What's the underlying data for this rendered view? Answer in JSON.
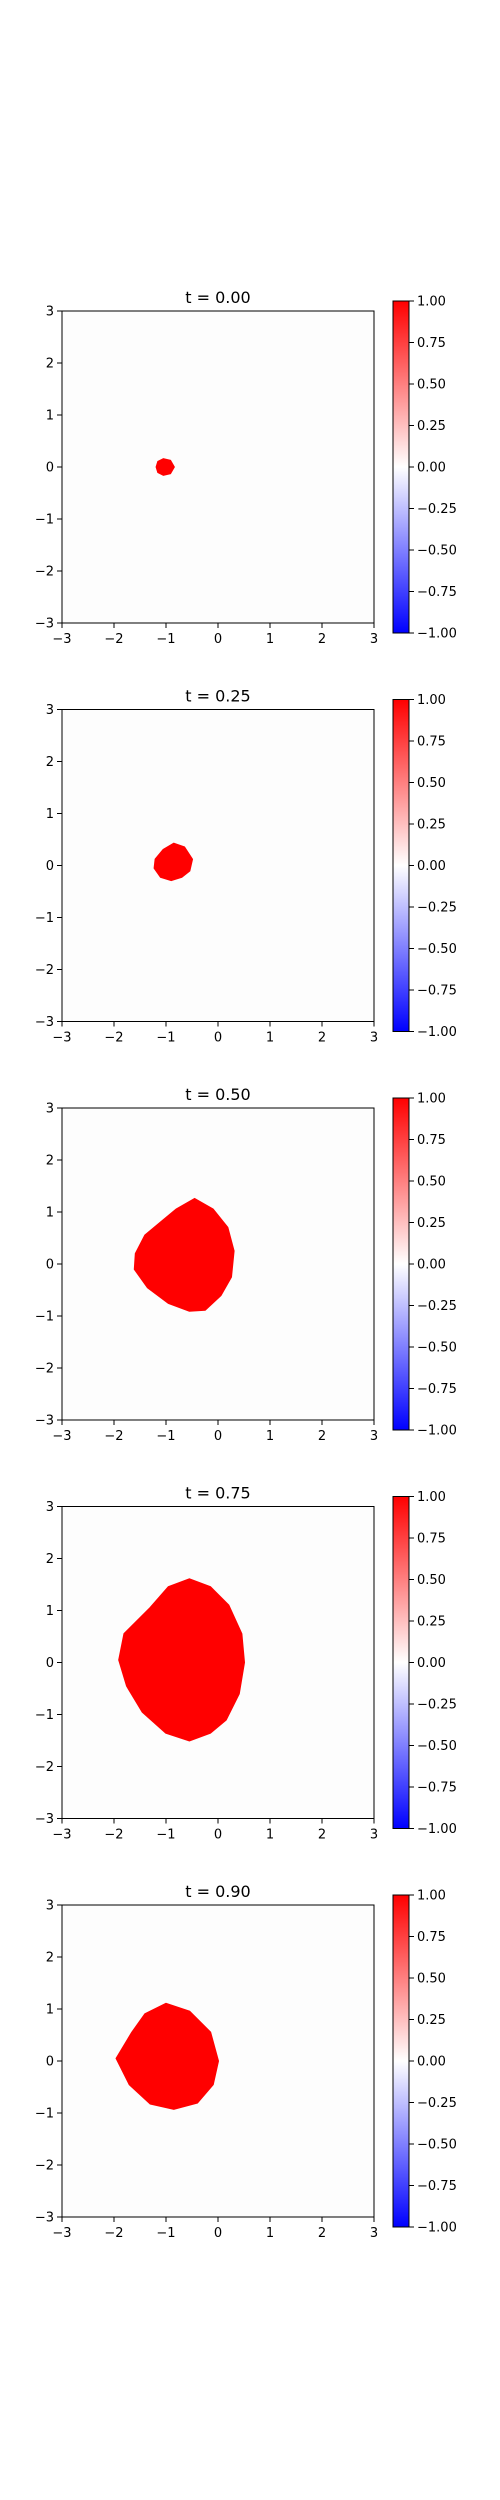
{
  "chart_data": [
    {
      "type": "heatmap",
      "title": "t = 0.00",
      "xlim": [
        -3,
        3
      ],
      "ylim": [
        -3,
        3
      ],
      "xticks": [
        -3,
        -2,
        -1,
        0,
        1,
        2,
        3
      ],
      "yticks": [
        -3,
        -2,
        -1,
        0,
        1,
        2,
        3
      ],
      "background_value": 0,
      "blob_value": 1,
      "blob_boundary": [
        [
          -1.15,
          0.1
        ],
        [
          -1.05,
          0.15
        ],
        [
          -0.92,
          0.12
        ],
        [
          -0.85,
          0.0
        ],
        [
          -0.92,
          -0.12
        ],
        [
          -1.05,
          -0.15
        ],
        [
          -1.15,
          -0.1
        ],
        [
          -1.18,
          0.0
        ]
      ],
      "colorbar": {
        "range": [
          -1,
          1
        ],
        "ticks": [
          "1.00",
          "0.75",
          "0.50",
          "0.25",
          "0.00",
          "−0.25",
          "−0.50",
          "−0.75",
          "−1.00"
        ],
        "values": [
          1,
          0.75,
          0.5,
          0.25,
          0,
          -0.25,
          -0.5,
          -0.75,
          -1
        ],
        "colormap": "bwr",
        "colors": {
          "low": "#0000ff",
          "mid": "#ffffff",
          "high": "#ff0000"
        }
      }
    },
    {
      "type": "heatmap",
      "title": "t = 0.25",
      "xlim": [
        -3,
        3
      ],
      "ylim": [
        -3,
        3
      ],
      "xticks": [
        -3,
        -2,
        -1,
        0,
        1,
        2,
        3
      ],
      "yticks": [
        -3,
        -2,
        -1,
        0,
        1,
        2,
        3
      ],
      "background_value": 0,
      "blob_value": 1,
      "blob_boundary": [
        [
          -1.05,
          0.3
        ],
        [
          -0.85,
          0.42
        ],
        [
          -0.65,
          0.35
        ],
        [
          -0.5,
          0.12
        ],
        [
          -0.55,
          -0.1
        ],
        [
          -0.7,
          -0.22
        ],
        [
          -0.9,
          -0.28
        ],
        [
          -1.1,
          -0.22
        ],
        [
          -1.22,
          -0.05
        ],
        [
          -1.2,
          0.12
        ]
      ],
      "colorbar": {
        "range": [
          -1,
          1
        ],
        "ticks": [
          "1.00",
          "0.75",
          "0.50",
          "0.25",
          "0.00",
          "−0.25",
          "−0.50",
          "−0.75",
          "−1.00"
        ],
        "values": [
          1,
          0.75,
          0.5,
          0.25,
          0,
          -0.25,
          -0.5,
          -0.75,
          -1
        ],
        "colormap": "bwr",
        "colors": {
          "low": "#0000ff",
          "mid": "#ffffff",
          "high": "#ff0000"
        }
      }
    },
    {
      "type": "heatmap",
      "title": "t = 0.50",
      "xlim": [
        -3,
        3
      ],
      "ylim": [
        -3,
        3
      ],
      "xticks": [
        -3,
        -2,
        -1,
        0,
        1,
        2,
        3
      ],
      "yticks": [
        -3,
        -2,
        -1,
        0,
        1,
        2,
        3
      ],
      "background_value": 0,
      "blob_value": 1,
      "blob_boundary": [
        [
          -1.4,
          0.55
        ],
        [
          -1.1,
          0.8
        ],
        [
          -0.8,
          1.05
        ],
        [
          -0.45,
          1.25
        ],
        [
          -0.1,
          1.05
        ],
        [
          0.18,
          0.7
        ],
        [
          0.3,
          0.25
        ],
        [
          0.25,
          -0.25
        ],
        [
          0.05,
          -0.6
        ],
        [
          -0.25,
          -0.88
        ],
        [
          -0.55,
          -0.9
        ],
        [
          -0.95,
          -0.75
        ],
        [
          -1.35,
          -0.45
        ],
        [
          -1.6,
          -0.1
        ],
        [
          -1.58,
          0.2
        ]
      ],
      "colorbar": {
        "range": [
          -1,
          1
        ],
        "ticks": [
          "1.00",
          "0.75",
          "0.50",
          "0.25",
          "0.00",
          "−0.25",
          "−0.50",
          "−0.75",
          "−1.00"
        ],
        "values": [
          1,
          0.75,
          0.5,
          0.25,
          0,
          -0.25,
          -0.5,
          -0.75,
          -1
        ],
        "colormap": "bwr",
        "colors": {
          "low": "#0000ff",
          "mid": "#ffffff",
          "high": "#ff0000"
        }
      }
    },
    {
      "type": "heatmap",
      "title": "t = 0.75",
      "xlim": [
        -3,
        3
      ],
      "ylim": [
        -3,
        3
      ],
      "xticks": [
        -3,
        -2,
        -1,
        0,
        1,
        2,
        3
      ],
      "yticks": [
        -3,
        -2,
        -1,
        0,
        1,
        2,
        3
      ],
      "background_value": 0,
      "blob_value": 1,
      "blob_boundary": [
        [
          -1.3,
          1.05
        ],
        [
          -0.95,
          1.45
        ],
        [
          -0.55,
          1.6
        ],
        [
          -0.15,
          1.45
        ],
        [
          0.2,
          1.1
        ],
        [
          0.45,
          0.55
        ],
        [
          0.5,
          0.0
        ],
        [
          0.4,
          -0.6
        ],
        [
          0.15,
          -1.1
        ],
        [
          -0.15,
          -1.35
        ],
        [
          -0.55,
          -1.5
        ],
        [
          -1.0,
          -1.35
        ],
        [
          -1.45,
          -0.95
        ],
        [
          -1.75,
          -0.45
        ],
        [
          -1.9,
          0.05
        ],
        [
          -1.8,
          0.55
        ]
      ],
      "colorbar": {
        "range": [
          -1,
          1
        ],
        "ticks": [
          "1.00",
          "0.75",
          "0.50",
          "0.25",
          "0.00",
          "−0.25",
          "−0.50",
          "−0.75",
          "−1.00"
        ],
        "values": [
          1,
          0.75,
          0.5,
          0.25,
          0,
          -0.25,
          -0.5,
          -0.75,
          -1
        ],
        "colormap": "bwr",
        "colors": {
          "low": "#0000ff",
          "mid": "#ffffff",
          "high": "#ff0000"
        }
      }
    },
    {
      "type": "heatmap",
      "title": "t = 0.90",
      "xlim": [
        -3,
        3
      ],
      "ylim": [
        -3,
        3
      ],
      "xticks": [
        -3,
        -2,
        -1,
        0,
        1,
        2,
        3
      ],
      "yticks": [
        -3,
        -2,
        -1,
        0,
        1,
        2,
        3
      ],
      "background_value": 0,
      "blob_value": 1,
      "blob_boundary": [
        [
          -1.65,
          0.55
        ],
        [
          -1.4,
          0.9
        ],
        [
          -1.0,
          1.1
        ],
        [
          -0.55,
          0.95
        ],
        [
          -0.15,
          0.55
        ],
        [
          0.0,
          0.0
        ],
        [
          -0.1,
          -0.45
        ],
        [
          -0.4,
          -0.8
        ],
        [
          -0.85,
          -0.92
        ],
        [
          -1.3,
          -0.82
        ],
        [
          -1.7,
          -0.45
        ],
        [
          -1.95,
          0.05
        ]
      ],
      "colorbar": {
        "range": [
          -1,
          1
        ],
        "ticks": [
          "1.00",
          "0.75",
          "0.50",
          "0.25",
          "0.00",
          "−0.25",
          "−0.50",
          "−0.75",
          "−1.00"
        ],
        "values": [
          1,
          0.75,
          0.5,
          0.25,
          0,
          -0.25,
          -0.5,
          -0.75,
          -1
        ],
        "colormap": "bwr",
        "colors": {
          "low": "#0000ff",
          "mid": "#ffffff",
          "high": "#ff0000"
        }
      }
    }
  ]
}
